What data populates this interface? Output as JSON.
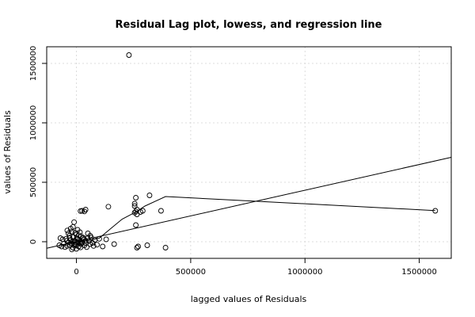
{
  "chart_data": {
    "type": "scatter",
    "title": "Residual Lag plot, lowess, and regression line",
    "xlabel": "lagged values of Residuals",
    "ylabel": "values of Residuals",
    "xlim": [
      -130000,
      1640000
    ],
    "ylim": [
      -140000,
      1640000
    ],
    "xticks": [
      0,
      500000,
      1000000,
      1500000
    ],
    "yticks": [
      0,
      500000,
      1000000,
      1500000
    ],
    "xtick_labels": [
      "0",
      "500000",
      "1000000",
      "1500000"
    ],
    "ytick_labels": [
      "0",
      "500000",
      "1000000",
      "1500000"
    ],
    "grid": true,
    "points": [
      [
        230000,
        1570000
      ],
      [
        1570000,
        260000
      ],
      [
        390000,
        -50000
      ],
      [
        310000,
        -30000
      ],
      [
        320000,
        390000
      ],
      [
        260000,
        370000
      ],
      [
        255000,
        320000
      ],
      [
        255000,
        300000
      ],
      [
        265000,
        270000
      ],
      [
        260000,
        255000
      ],
      [
        255000,
        245000
      ],
      [
        290000,
        260000
      ],
      [
        280000,
        250000
      ],
      [
        370000,
        260000
      ],
      [
        265000,
        230000
      ],
      [
        260000,
        140000
      ],
      [
        265000,
        -50000
      ],
      [
        270000,
        -40000
      ],
      [
        140000,
        295000
      ],
      [
        40000,
        270000
      ],
      [
        25000,
        260000
      ],
      [
        18000,
        258000
      ],
      [
        35000,
        255000
      ],
      [
        -10000,
        165000
      ],
      [
        -15000,
        125000
      ],
      [
        -25000,
        110000
      ],
      [
        -40000,
        95000
      ],
      [
        -20000,
        85000
      ],
      [
        -5000,
        75000
      ],
      [
        0,
        60000
      ],
      [
        10000,
        55000
      ],
      [
        -30000,
        50000
      ],
      [
        20000,
        45000
      ],
      [
        -15000,
        40000
      ],
      [
        30000,
        35000
      ],
      [
        50000,
        30000
      ],
      [
        -45000,
        25000
      ],
      [
        5000,
        20000
      ],
      [
        -25000,
        15000
      ],
      [
        40000,
        10000
      ],
      [
        -10000,
        5000
      ],
      [
        15000,
        0
      ],
      [
        -35000,
        -5000
      ],
      [
        25000,
        -10000
      ],
      [
        -20000,
        -15000
      ],
      [
        60000,
        -20000
      ],
      [
        -5000,
        -25000
      ],
      [
        35000,
        -30000
      ],
      [
        -40000,
        -35000
      ],
      [
        10000,
        -40000
      ],
      [
        -50000,
        -45000
      ],
      [
        -15000,
        -50000
      ],
      [
        20000,
        -20000
      ],
      [
        45000,
        -45000
      ],
      [
        -28000,
        -28000
      ],
      [
        8000,
        -8000
      ],
      [
        -8000,
        8000
      ],
      [
        28000,
        28000
      ],
      [
        55000,
        5000
      ],
      [
        -55000,
        -15000
      ],
      [
        70000,
        -10000
      ],
      [
        80000,
        15000
      ],
      [
        90000,
        -25000
      ],
      [
        100000,
        25000
      ],
      [
        115000,
        -40000
      ],
      [
        130000,
        20000
      ],
      [
        165000,
        -20000
      ],
      [
        60000,
        50000
      ],
      [
        -60000,
        20000
      ],
      [
        -65000,
        -40000
      ],
      [
        -70000,
        30000
      ],
      [
        -75000,
        -30000
      ],
      [
        0,
        -60000
      ],
      [
        -20000,
        -65000
      ],
      [
        5000,
        100000
      ],
      [
        50000,
        70000
      ],
      [
        -35000,
        70000
      ],
      [
        15000,
        80000
      ],
      [
        -5000,
        -5000
      ],
      [
        12000,
        12000
      ],
      [
        -18000,
        2000
      ],
      [
        22000,
        -2000
      ],
      [
        -12000,
        -22000
      ],
      [
        32000,
        18000
      ],
      [
        -42000,
        8000
      ],
      [
        42000,
        -12000
      ],
      [
        2000,
        32000
      ],
      [
        -2000,
        -32000
      ],
      [
        65000,
        35000
      ],
      [
        75000,
        -35000
      ],
      [
        -30000,
        30000
      ],
      [
        18000,
        -48000
      ]
    ],
    "lines": [
      {
        "name": "",
        "x": [
          -130000,
          1640000
        ],
        "y": [
          -55000,
          710000
        ]
      },
      {
        "name": "",
        "x": [
          -50000,
          0,
          50000,
          100000,
          150000,
          200000,
          260000,
          300000,
          390000,
          1570000
        ],
        "y": [
          -10000,
          0,
          10000,
          30000,
          110000,
          190000,
          250000,
          300000,
          380000,
          262000
        ]
      }
    ]
  }
}
